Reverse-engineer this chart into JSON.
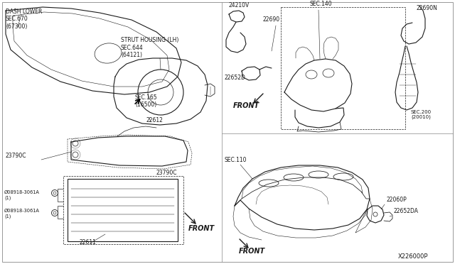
{
  "bg_color": "#ffffff",
  "line_color": "#1a1a1a",
  "border_color": "#888888",
  "diagram_id": "X226000P",
  "fig_w": 6.4,
  "fig_h": 3.72,
  "dpi": 100,
  "labels": {
    "dash_lower": "DASH LOWER\nSEC.670\n(67300)",
    "strut_housing": "STRUT HOUSING (LH)\nSEC.644\n(64121)",
    "sec165": "SEC.165\n(16500)",
    "part22612": "22612",
    "part23790c_left": "23790C",
    "part23790c_right": "23790C",
    "part22611": "22611",
    "bolt1": "Ø08918-3061A\n(1)",
    "bolt2": "Ø08918-3061A\n(1)",
    "front_lower_left": "FRONT",
    "part24210v": "24210V",
    "part22690": "22690",
    "part22652d": "22652D",
    "sec140": "SEC.140",
    "front_upper_right": "FRONT",
    "part22690n": "22690N",
    "sec200": "SEC.200\n(20010)",
    "sec110": "SEC.110",
    "front_lower_right": "FRONT",
    "part22060p": "22060P",
    "part22652da": "22652DA"
  }
}
